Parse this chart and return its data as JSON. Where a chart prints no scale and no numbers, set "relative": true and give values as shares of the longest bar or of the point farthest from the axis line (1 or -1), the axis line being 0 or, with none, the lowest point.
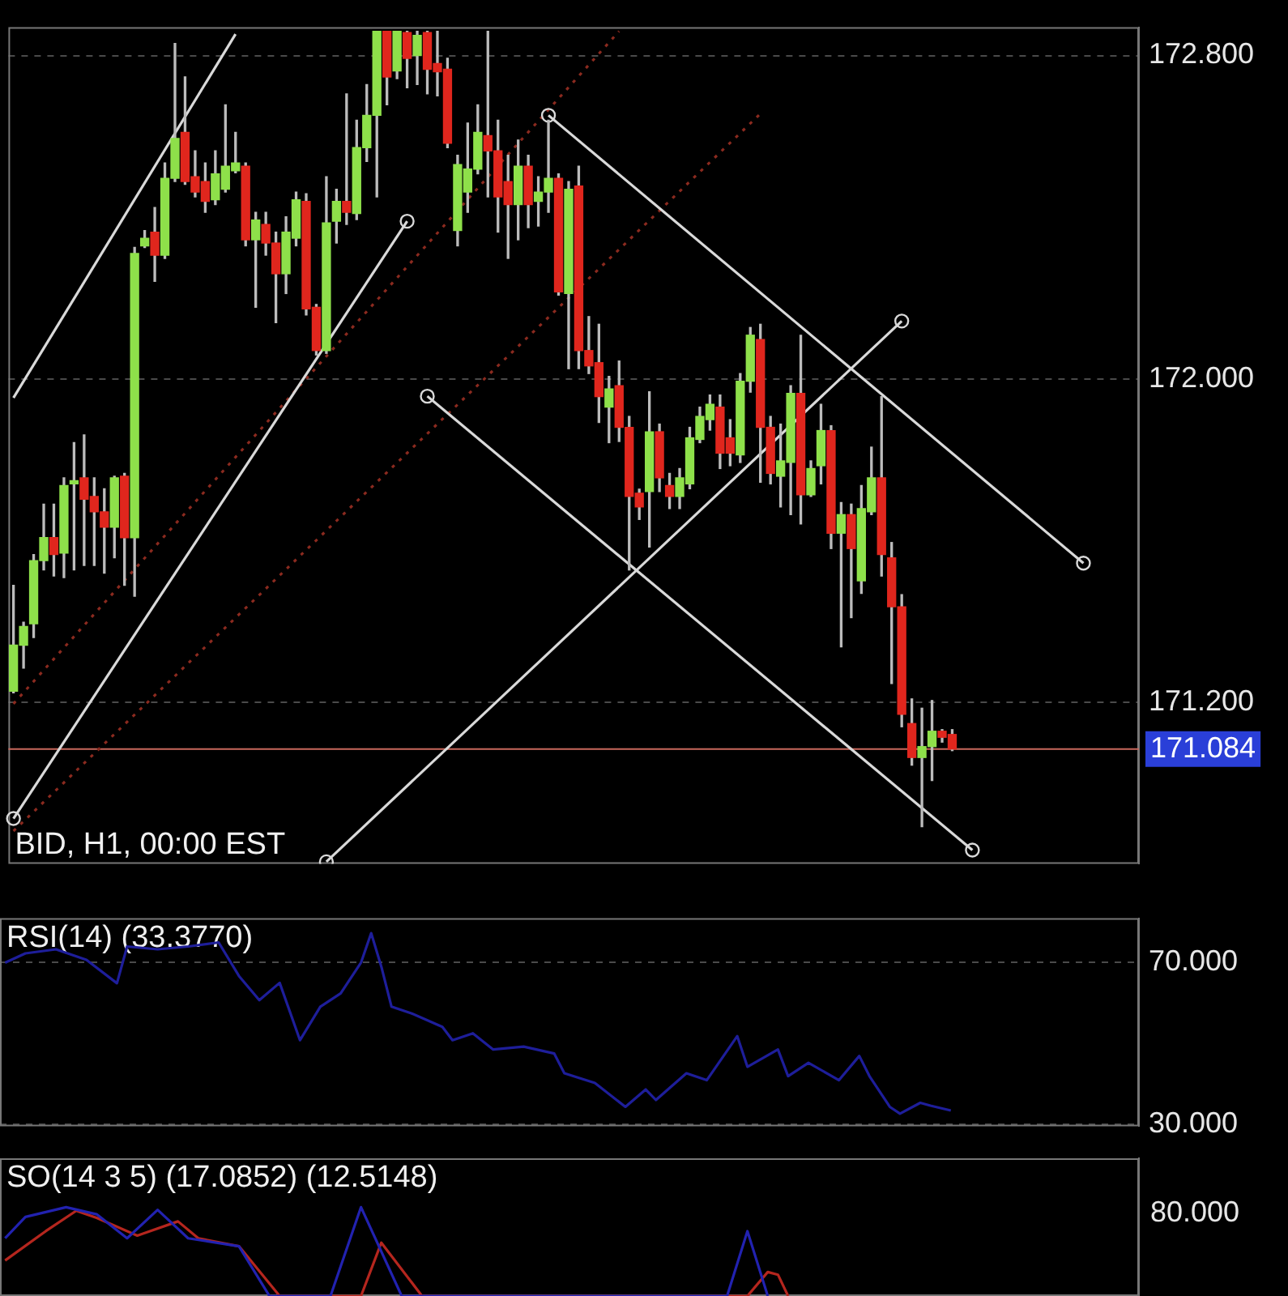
{
  "chart_data": [
    {
      "type": "candlestick",
      "title": "BID, H1, 00:00 EST",
      "categories": [
        null,
        null,
        null,
        null,
        null,
        null,
        null,
        null,
        null,
        null,
        null,
        null,
        null,
        null,
        null,
        null,
        null,
        null,
        null,
        null,
        null,
        null,
        null,
        null,
        null,
        null,
        null,
        null,
        null,
        null,
        null,
        null,
        null,
        null,
        null,
        null,
        null,
        null,
        null,
        null,
        null,
        null,
        null,
        null,
        null,
        null,
        null,
        null,
        null,
        null,
        null,
        null,
        null,
        null,
        null,
        null,
        null,
        null,
        null,
        null,
        null,
        null,
        null,
        null,
        null,
        null,
        null,
        null,
        null,
        null,
        null,
        null,
        null,
        null,
        null,
        null,
        null,
        null,
        null,
        null,
        null,
        null,
        null,
        null,
        null,
        null,
        null,
        null,
        null,
        null,
        null,
        null,
        null,
        null,
        null,
        null,
        null,
        null,
        null,
        null,
        null,
        null,
        null,
        null,
        null,
        null,
        null,
        null,
        null,
        null,
        null,
        null
      ],
      "ohlc": [
        [
          171.227,
          171.489,
          171.223,
          171.341
        ],
        [
          171.341,
          171.398,
          171.284,
          171.387
        ],
        [
          171.394,
          171.565,
          171.36,
          171.55
        ],
        [
          171.55,
          171.69,
          171.527,
          171.607
        ],
        [
          171.607,
          171.69,
          171.512,
          171.565
        ],
        [
          171.569,
          171.755,
          171.508,
          171.736
        ],
        [
          171.74,
          171.842,
          171.527,
          171.748
        ],
        [
          171.755,
          171.861,
          171.538,
          171.702
        ],
        [
          171.709,
          171.755,
          171.538,
          171.671
        ],
        [
          171.671,
          171.728,
          171.519,
          171.633
        ],
        [
          171.633,
          171.759,
          171.557,
          171.755
        ],
        [
          171.759,
          171.766,
          171.489,
          171.607
        ],
        [
          171.607,
          172.325,
          171.462,
          172.31
        ],
        [
          172.329,
          172.367,
          172.325,
          172.348
        ],
        [
          172.363,
          172.424,
          172.241,
          172.306
        ],
        [
          172.306,
          172.534,
          172.298,
          172.496
        ],
        [
          172.496,
          172.83,
          172.488,
          172.595
        ],
        [
          172.61,
          172.747,
          172.481,
          172.488
        ],
        [
          172.5,
          172.564,
          172.45,
          172.462
        ],
        [
          172.488,
          172.534,
          172.412,
          172.439
        ],
        [
          172.443,
          172.564,
          172.431,
          172.507
        ],
        [
          172.469,
          172.678,
          172.462,
          172.526
        ],
        [
          172.515,
          172.61,
          172.51,
          172.534
        ],
        [
          172.526,
          172.534,
          172.329,
          172.344
        ],
        [
          172.344,
          172.412,
          172.177,
          172.393
        ],
        [
          172.382,
          172.412,
          172.306,
          172.336
        ],
        [
          172.336,
          172.363,
          172.139,
          172.26
        ],
        [
          172.26,
          172.401,
          172.211,
          172.363
        ],
        [
          172.348,
          172.462,
          172.329,
          172.443
        ],
        [
          172.439,
          172.458,
          172.158,
          172.173
        ],
        [
          172.177,
          172.184,
          172.059,
          172.07
        ],
        [
          172.07,
          172.5,
          172.063,
          172.386
        ],
        [
          172.39,
          172.469,
          172.336,
          172.439
        ],
        [
          172.439,
          172.705,
          172.382,
          172.412
        ],
        [
          172.409,
          172.64,
          172.394,
          172.572
        ],
        [
          172.572,
          172.728,
          172.538,
          172.652
        ],
        [
          172.652,
          172.86,
          172.45,
          172.86
        ],
        [
          172.86,
          172.86,
          172.678,
          172.747
        ],
        [
          172.762,
          172.86,
          172.743,
          172.86
        ],
        [
          172.857,
          172.86,
          172.72,
          172.793
        ],
        [
          172.8,
          172.86,
          172.728,
          172.85
        ],
        [
          172.857,
          172.86,
          172.705,
          172.766
        ],
        [
          172.78,
          172.86,
          172.7,
          172.76
        ],
        [
          172.766,
          172.793,
          172.572,
          172.583
        ],
        [
          172.367,
          172.553,
          172.329,
          172.53
        ],
        [
          172.462,
          172.633,
          172.412,
          172.519
        ],
        [
          172.519,
          172.678,
          172.507,
          172.61
        ],
        [
          172.602,
          172.86,
          172.45,
          172.564
        ],
        [
          172.564,
          172.64,
          172.363,
          172.45
        ],
        [
          172.488,
          172.553,
          172.298,
          172.431
        ],
        [
          172.431,
          172.591,
          172.344,
          172.526
        ],
        [
          172.526,
          172.553,
          172.374,
          172.431
        ],
        [
          172.439,
          172.5,
          172.378,
          172.462
        ],
        [
          172.462,
          172.64,
          172.412,
          172.496
        ],
        [
          172.496,
          172.507,
          172.207,
          172.215
        ],
        [
          172.211,
          172.488,
          172.025,
          172.469
        ],
        [
          172.477,
          172.526,
          172.025,
          172.07
        ],
        [
          172.07,
          172.154,
          172.013,
          172.032
        ],
        [
          172.04,
          172.135,
          171.892,
          171.956
        ],
        [
          171.93,
          172.006,
          171.842,
          171.975
        ],
        [
          171.983,
          172.044,
          171.845,
          171.88
        ],
        [
          171.88,
          171.907,
          171.527,
          171.709
        ],
        [
          171.717,
          171.727,
          171.652,
          171.683
        ],
        [
          171.721,
          171.968,
          171.584,
          171.869
        ],
        [
          171.869,
          171.888,
          171.721,
          171.755
        ],
        [
          171.736,
          171.766,
          171.679,
          171.709
        ],
        [
          171.709,
          171.778,
          171.679,
          171.755
        ],
        [
          171.74,
          171.88,
          171.728,
          171.854
        ],
        [
          171.85,
          171.93,
          171.842,
          171.907
        ],
        [
          171.899,
          171.96,
          171.873,
          171.937
        ],
        [
          171.93,
          171.96,
          171.778,
          171.816
        ],
        [
          171.854,
          171.899,
          171.785,
          171.816
        ],
        [
          171.812,
          172.013,
          171.793,
          171.994
        ],
        [
          171.994,
          172.127,
          171.967,
          172.108
        ],
        [
          172.097,
          172.135,
          171.744,
          171.88
        ],
        [
          171.88,
          171.907,
          171.74,
          171.766
        ],
        [
          171.759,
          171.888,
          171.683,
          171.797
        ],
        [
          171.793,
          171.983,
          171.664,
          171.964
        ],
        [
          171.964,
          172.108,
          171.641,
          171.713
        ],
        [
          171.713,
          171.797,
          171.709,
          171.778
        ],
        [
          171.785,
          171.937,
          171.74,
          171.872
        ],
        [
          171.872,
          171.884,
          171.58,
          171.618
        ],
        [
          171.618,
          171.694,
          171.337,
          171.664
        ],
        [
          171.664,
          171.69,
          171.409,
          171.58
        ],
        [
          171.5,
          171.736,
          171.469,
          171.679
        ],
        [
          171.671,
          171.831,
          171.664,
          171.755
        ],
        [
          171.755,
          171.956,
          171.512,
          171.565
        ],
        [
          171.557,
          171.595,
          171.246,
          171.436
        ],
        [
          171.436,
          171.466,
          171.139,
          171.17
        ],
        [
          171.147,
          171.208,
          171.044,
          171.063
        ],
        [
          171.063,
          171.185,
          170.892,
          171.09
        ],
        [
          171.09,
          171.204,
          171.006,
          171.128
        ],
        [
          171.128,
          171.132,
          171.101,
          171.113
        ],
        [
          171.12,
          171.132,
          171.08,
          171.084
        ],
        null,
        null,
        null,
        null,
        null,
        null,
        null,
        null,
        null,
        null,
        null,
        null,
        null,
        null,
        null,
        null,
        null,
        null
      ],
      "series": [
        {
          "type": "line",
          "color": "#d9d9d9",
          "values": [
            171.953,
            null,
            null,
            null,
            null,
            null,
            null,
            null,
            null,
            null,
            null,
            null,
            null,
            null,
            null,
            null,
            null,
            null,
            null,
            null,
            null,
            null,
            172.853,
            null,
            null,
            null,
            null,
            null,
            null,
            null,
            null,
            null,
            null,
            null,
            null,
            null,
            null,
            null,
            null,
            null,
            null,
            null,
            null,
            null,
            null,
            null,
            null,
            null,
            null,
            null,
            null,
            null,
            null,
            null,
            null,
            null,
            null,
            null,
            null,
            null,
            null,
            null,
            null,
            null,
            null,
            null,
            null,
            null,
            null,
            null,
            null,
            null,
            null,
            null,
            null,
            null,
            null,
            null,
            null,
            null,
            null,
            null,
            null,
            null,
            null,
            null,
            null,
            null,
            null,
            null,
            null,
            null,
            null,
            null,
            null,
            null,
            null,
            null,
            null,
            null,
            null,
            null,
            null,
            null,
            null,
            null,
            null,
            null,
            null,
            null,
            null,
            null
          ]
        },
        {
          "type": "line",
          "color": "#d9d9d9",
          "marker": "circle",
          "values": [
            170.912,
            null,
            null,
            null,
            null,
            null,
            null,
            null,
            null,
            null,
            null,
            null,
            null,
            null,
            null,
            null,
            null,
            null,
            null,
            null,
            null,
            null,
            null,
            null,
            null,
            null,
            null,
            null,
            null,
            null,
            null,
            null,
            null,
            null,
            null,
            null,
            null,
            null,
            null,
            172.39,
            null,
            null,
            null,
            null,
            null,
            null,
            null,
            null,
            null,
            null,
            null,
            null,
            null,
            null,
            null,
            null,
            null,
            null,
            null,
            null,
            null,
            null,
            null,
            null,
            null,
            null,
            null,
            null,
            null,
            null,
            null,
            null,
            null,
            null,
            null,
            null,
            null,
            null,
            null,
            null,
            null,
            null,
            null,
            null,
            null,
            null,
            null,
            null,
            null,
            null,
            null,
            null,
            null,
            null,
            null,
            null,
            null,
            null,
            null,
            null,
            null,
            null,
            null,
            null,
            null,
            null,
            null,
            null,
            null,
            null,
            null,
            null
          ]
        },
        {
          "type": "line",
          "color": "#d9d9d9",
          "marker": "circle",
          "values": [
            null,
            null,
            null,
            null,
            null,
            null,
            null,
            null,
            null,
            null,
            null,
            null,
            null,
            null,
            null,
            null,
            null,
            null,
            null,
            null,
            null,
            null,
            null,
            null,
            null,
            null,
            null,
            null,
            null,
            null,
            null,
            null,
            null,
            null,
            null,
            null,
            null,
            null,
            null,
            null,
            null,
            171.957,
            null,
            null,
            null,
            null,
            null,
            null,
            null,
            null,
            null,
            null,
            null,
            null,
            null,
            null,
            null,
            null,
            null,
            null,
            null,
            null,
            null,
            null,
            null,
            null,
            null,
            null,
            null,
            null,
            null,
            null,
            null,
            null,
            null,
            null,
            null,
            null,
            null,
            null,
            null,
            null,
            null,
            null,
            null,
            null,
            null,
            null,
            null,
            null,
            null,
            null,
            null,
            null,
            null,
            170.834,
            null,
            null,
            null,
            null,
            null,
            null,
            null,
            null,
            null,
            null,
            null,
            null,
            null,
            null,
            null,
            null
          ]
        },
        {
          "type": "line",
          "color": "#d9d9d9",
          "marker": "circle",
          "values": [
            null,
            null,
            null,
            null,
            null,
            null,
            null,
            null,
            null,
            null,
            null,
            null,
            null,
            null,
            null,
            null,
            null,
            null,
            null,
            null,
            null,
            null,
            null,
            null,
            null,
            null,
            null,
            null,
            null,
            null,
            null,
            null,
            null,
            null,
            null,
            null,
            null,
            null,
            null,
            null,
            null,
            null,
            null,
            null,
            null,
            null,
            null,
            null,
            null,
            null,
            null,
            null,
            null,
            172.652,
            null,
            null,
            null,
            null,
            null,
            null,
            null,
            null,
            null,
            null,
            null,
            null,
            null,
            null,
            null,
            null,
            null,
            null,
            null,
            null,
            null,
            null,
            null,
            null,
            null,
            null,
            null,
            null,
            null,
            null,
            null,
            null,
            null,
            null,
            null,
            null,
            null,
            null,
            null,
            null,
            null,
            null,
            null,
            null,
            null,
            null,
            null,
            null,
            null,
            null,
            null,
            null,
            171.544,
            null,
            null,
            null,
            null,
            null
          ]
        },
        {
          "type": "line",
          "color": "#d9d9d9",
          "marker": "circle",
          "values": [
            null,
            null,
            null,
            null,
            null,
            null,
            null,
            null,
            null,
            null,
            null,
            null,
            null,
            null,
            null,
            null,
            null,
            null,
            null,
            null,
            null,
            null,
            null,
            null,
            null,
            null,
            null,
            null,
            null,
            null,
            null,
            170.805,
            null,
            null,
            null,
            null,
            null,
            null,
            null,
            null,
            null,
            null,
            null,
            null,
            null,
            null,
            null,
            null,
            null,
            null,
            null,
            null,
            null,
            null,
            null,
            null,
            null,
            null,
            null,
            null,
            null,
            null,
            null,
            null,
            null,
            null,
            null,
            null,
            null,
            null,
            null,
            null,
            null,
            null,
            null,
            null,
            null,
            null,
            null,
            null,
            null,
            null,
            null,
            null,
            null,
            null,
            null,
            null,
            172.143,
            null,
            null,
            null,
            null,
            null,
            null,
            null,
            null,
            null,
            null,
            null,
            null,
            null,
            null,
            null,
            null,
            null,
            null,
            null,
            null,
            null,
            null,
            null
          ]
        },
        {
          "type": "line",
          "color": "#8b2a1f",
          "line_style": "dotted",
          "values": [
            171.196,
            null,
            null,
            null,
            null,
            null,
            null,
            null,
            null,
            null,
            null,
            null,
            null,
            null,
            null,
            null,
            null,
            null,
            null,
            null,
            null,
            null,
            null,
            null,
            null,
            null,
            null,
            null,
            null,
            null,
            null,
            null,
            null,
            null,
            null,
            null,
            null,
            null,
            null,
            null,
            null,
            null,
            null,
            null,
            null,
            null,
            null,
            null,
            null,
            null,
            null,
            null,
            null,
            null,
            null,
            null,
            null,
            null,
            null,
            null,
            172.86,
            null,
            null,
            null,
            null,
            null,
            null,
            null,
            null,
            null,
            null,
            null,
            null,
            null,
            null,
            null,
            null,
            null,
            null,
            null,
            null,
            null,
            null,
            null,
            null,
            null,
            null,
            null,
            null,
            null,
            null,
            null,
            null,
            null,
            null,
            null,
            null,
            null,
            null,
            null,
            null,
            null,
            null,
            null,
            null,
            null,
            null,
            null,
            null,
            null,
            null,
            null
          ]
        },
        {
          "type": "line",
          "color": "#8b2a1f",
          "line_style": "dotted",
          "values": [
            170.881,
            null,
            null,
            null,
            null,
            null,
            null,
            null,
            null,
            null,
            null,
            null,
            null,
            null,
            null,
            null,
            null,
            null,
            null,
            null,
            null,
            null,
            null,
            null,
            null,
            null,
            null,
            null,
            null,
            null,
            null,
            null,
            null,
            null,
            null,
            null,
            null,
            null,
            null,
            null,
            null,
            null,
            null,
            null,
            null,
            null,
            null,
            null,
            null,
            null,
            null,
            null,
            null,
            null,
            null,
            null,
            null,
            null,
            null,
            null,
            null,
            null,
            null,
            null,
            null,
            null,
            null,
            null,
            null,
            null,
            null,
            null,
            null,
            null,
            172.656,
            null,
            null,
            null,
            null,
            null,
            null,
            null,
            null,
            null,
            null,
            null,
            null,
            null,
            null,
            null,
            null,
            null,
            null,
            null,
            null,
            null,
            null,
            null,
            null,
            null,
            null,
            null,
            null,
            null,
            null,
            null,
            null,
            null,
            null,
            null,
            null,
            null
          ]
        }
      ],
      "ylim": [
        170.8,
        172.87
      ],
      "yticks": [
        {
          "value": 171.2,
          "label": "171.200"
        },
        {
          "value": 172,
          "label": "172.000"
        },
        {
          "value": 172.8,
          "label": "172.800"
        }
      ],
      "ref_lines": [
        {
          "axis": "y",
          "value": 171.084,
          "label": "171.084",
          "color": "#c8685c"
        }
      ],
      "grid": "y",
      "tick_labels": "y"
    },
    {
      "type": "line",
      "title": "RSI(14) (33.3770)",
      "categories": [
        null,
        null,
        null,
        null,
        null,
        null,
        null,
        null,
        null,
        null,
        null,
        null,
        null,
        null,
        null,
        null,
        null,
        null,
        null,
        null,
        null,
        null,
        null,
        null,
        null,
        null,
        null,
        null,
        null,
        null,
        null,
        null,
        null,
        null,
        null,
        null,
        null,
        null,
        null,
        null,
        null,
        null,
        null,
        null,
        null,
        null,
        null,
        null,
        null,
        null,
        null,
        null,
        null,
        null,
        null,
        null,
        null,
        null,
        null,
        null,
        null,
        null,
        null,
        null,
        null,
        null,
        null,
        null,
        null,
        null,
        null,
        null,
        null,
        null,
        null,
        null,
        null,
        null,
        null,
        null,
        null,
        null,
        null,
        null,
        null,
        null,
        null,
        null,
        null,
        null,
        null,
        null,
        null,
        null,
        null,
        null,
        null,
        null,
        null,
        null,
        null,
        null,
        null,
        null,
        null,
        null,
        null,
        null,
        null,
        null,
        null,
        null
      ],
      "series": [
        {
          "color": "#1e1e9a",
          "values": [
            70,
            null,
            72.3,
            null,
            null,
            73.3,
            null,
            null,
            70.7,
            null,
            null,
            64.9,
            74,
            null,
            null,
            73.3,
            null,
            null,
            74,
            null,
            null,
            75,
            null,
            66.7,
            null,
            60.7,
            null,
            65,
            null,
            50.8,
            null,
            59.1,
            null,
            62.4,
            null,
            70,
            77.3,
            69,
            59.1,
            null,
            57.4,
            null,
            null,
            54.1,
            50.8,
            null,
            52.5,
            null,
            48.5,
            null,
            null,
            49.2,
            null,
            null,
            47.5,
            42.6,
            null,
            null,
            40.2,
            null,
            null,
            34.3,
            null,
            38.6,
            36,
            null,
            null,
            42.6,
            null,
            40.9,
            null,
            null,
            51.8,
            44.2,
            null,
            null,
            48.5,
            41.9,
            null,
            45.2,
            null,
            null,
            40.9,
            null,
            46.9,
            41.9,
            null,
            34.3,
            32.6,
            null,
            35.3,
            34.6,
            null,
            33.4,
            null,
            null,
            null,
            null,
            null,
            null,
            null,
            null,
            null,
            null,
            null,
            null,
            null,
            null,
            null,
            null,
            null,
            null
          ]
        }
      ],
      "ylim": [
        29.5,
        81
      ],
      "yticks": [
        {
          "value": 30,
          "label": "30.000"
        },
        {
          "value": 70,
          "label": "70.000"
        }
      ],
      "grid": "y",
      "tick_labels": "y"
    },
    {
      "type": "line",
      "title": "SO(14 3 5) (17.0852) (12.5148)",
      "relative": true,
      "annotations": [
        "80.000"
      ],
      "categories": [
        null,
        null,
        null,
        null,
        null,
        null,
        null,
        null,
        null,
        null,
        null,
        null,
        null,
        null,
        null,
        null,
        null,
        null,
        null,
        null,
        null,
        null,
        null,
        null,
        null,
        null,
        null,
        null,
        null,
        null,
        null,
        null,
        null,
        null,
        null,
        null,
        null,
        null,
        null,
        null,
        null,
        null,
        null,
        null,
        null,
        null,
        null,
        null,
        null,
        null,
        null,
        null,
        null,
        null,
        null,
        null,
        null,
        null,
        null,
        null,
        null,
        null,
        null,
        null,
        null,
        null,
        null,
        null,
        null,
        null,
        null,
        null,
        null,
        null,
        null,
        null,
        null,
        null,
        null,
        null,
        null,
        null,
        null,
        null,
        null,
        null,
        null,
        null,
        null,
        null,
        null,
        null,
        null,
        null,
        null,
        null,
        null,
        null,
        null,
        null,
        null,
        null,
        null,
        null,
        null,
        null,
        null,
        null,
        null,
        null,
        null,
        null
      ],
      "series": [
        {
          "color": "#2222b0",
          "values": [
            0.65,
            null,
            0.89,
            null,
            null,
            null,
            1,
            null,
            null,
            0.92,
            null,
            null,
            0.65,
            null,
            null,
            0.97,
            null,
            null,
            0.65,
            null,
            null,
            null,
            null,
            0.56,
            null,
            null,
            0,
            null,
            null,
            null,
            null,
            null,
            0,
            null,
            null,
            1,
            null,
            null,
            null,
            0,
            null,
            null,
            null,
            null,
            null,
            null,
            null,
            null,
            null,
            null,
            null,
            null,
            null,
            null,
            null,
            null,
            null,
            null,
            null,
            null,
            null,
            null,
            null,
            null,
            null,
            null,
            null,
            null,
            null,
            null,
            null,
            0,
            null,
            0.73,
            null,
            0,
            null,
            null,
            null,
            null,
            null,
            null,
            null,
            null,
            null,
            null,
            null,
            null,
            null,
            null,
            null,
            null,
            null,
            null,
            null,
            null,
            null,
            null,
            null,
            null,
            null,
            null,
            null,
            null,
            null,
            null,
            null,
            null,
            null,
            null,
            null,
            null
          ]
        },
        {
          "color": "#b5261e",
          "values": [
            0.4,
            null,
            null,
            null,
            0.73,
            null,
            null,
            0.96,
            null,
            0.88,
            null,
            null,
            null,
            0.68,
            null,
            null,
            null,
            0.84,
            null,
            0.65,
            null,
            null,
            null,
            0.56,
            null,
            null,
            null,
            0,
            null,
            null,
            null,
            null,
            null,
            null,
            null,
            0,
            null,
            0.6,
            null,
            null,
            null,
            0,
            null,
            null,
            null,
            null,
            null,
            null,
            null,
            null,
            null,
            null,
            null,
            null,
            null,
            null,
            null,
            null,
            null,
            null,
            null,
            null,
            null,
            null,
            null,
            null,
            null,
            null,
            null,
            null,
            null,
            null,
            null,
            0,
            null,
            0.27,
            0.24,
            0,
            null,
            null,
            null,
            null,
            null,
            null,
            null,
            null,
            null,
            null,
            null,
            null,
            null,
            null,
            null,
            null,
            null,
            null,
            null,
            null,
            null,
            null,
            null,
            null,
            null,
            null,
            null,
            null,
            null,
            null,
            null,
            null,
            null,
            null
          ]
        }
      ]
    }
  ]
}
